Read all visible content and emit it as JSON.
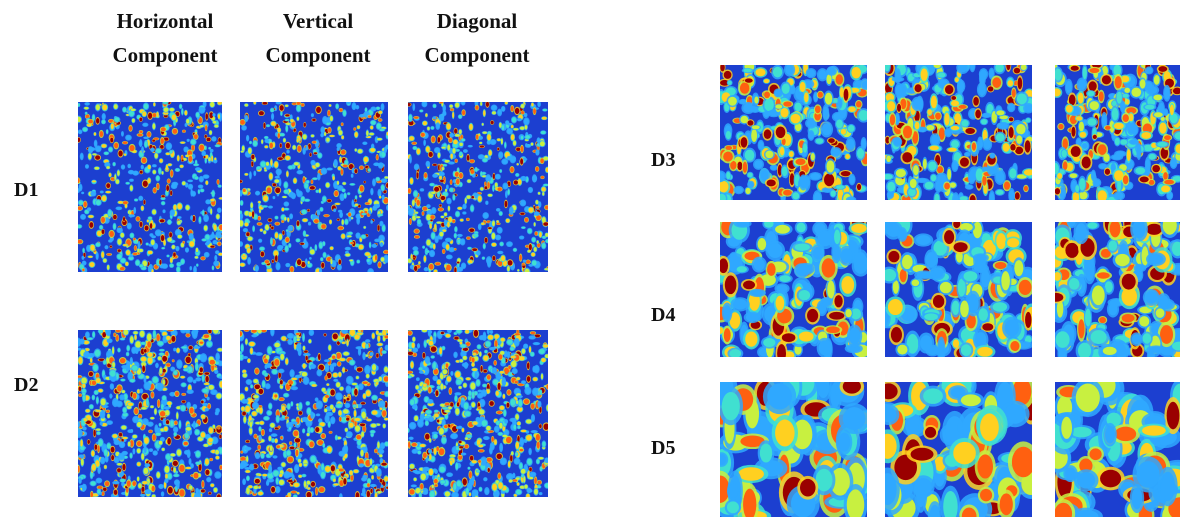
{
  "headers": [
    [
      "Horizontal",
      "Component"
    ],
    [
      "Vertical",
      "Component"
    ],
    [
      "Diagonal",
      "Component"
    ]
  ],
  "rows": [
    "D1",
    "D2",
    "D3",
    "D4",
    "D5"
  ]
}
